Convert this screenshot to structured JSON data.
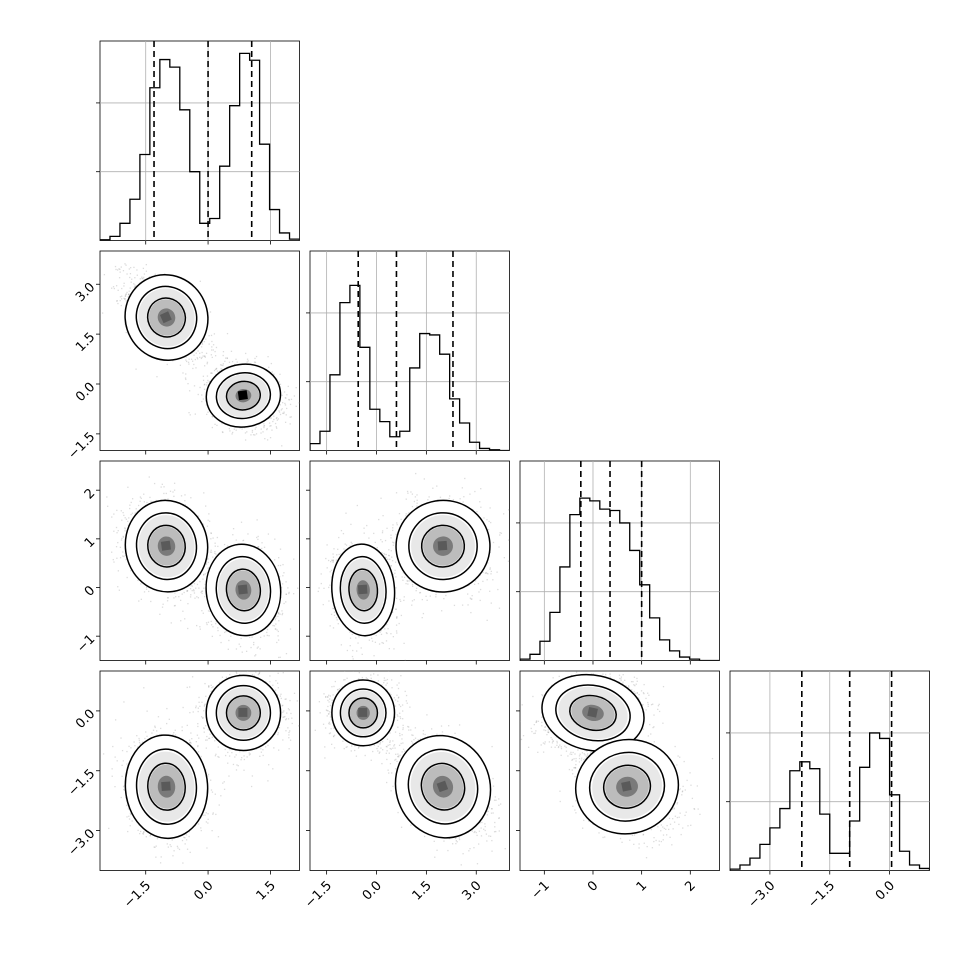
{
  "chart_data": {
    "type": "corner",
    "n_params": 4,
    "colors": {
      "line": "#000000",
      "grid": "#b0b0b0",
      "scatter": "#9a9a9a",
      "density_light": "#e6e6e6",
      "density_dark": "#000000"
    },
    "parameters": [
      {
        "id": "p0",
        "range": [
          -2.6,
          2.2
        ],
        "ticks": [
          -1.5,
          0.0,
          1.5
        ],
        "tick_labels": [
          "−1.5",
          "0.0",
          "1.5"
        ],
        "quantiles": [
          -1.3,
          0.0,
          1.05
        ]
      },
      {
        "id": "p1",
        "range": [
          -2.0,
          4.0
        ],
        "ticks": [
          -1.5,
          0.0,
          1.5,
          3.0
        ],
        "tick_labels": [
          "−1.5",
          "0.0",
          "1.5",
          "3.0"
        ],
        "quantiles": [
          -0.55,
          0.6,
          2.3
        ]
      },
      {
        "id": "p2",
        "range": [
          -1.5,
          2.6
        ],
        "ticks": [
          -1,
          0,
          1,
          2
        ],
        "tick_labels": [
          "−1",
          "0",
          "1",
          "2"
        ],
        "quantiles": [
          -0.25,
          0.35,
          1.0
        ]
      },
      {
        "id": "p3",
        "range": [
          -4.0,
          1.0
        ],
        "ticks": [
          -3.0,
          -1.5,
          0.0
        ],
        "tick_labels": [
          "−3.0",
          "−1.5",
          "0.0"
        ],
        "quantiles": [
          -2.2,
          -1.0,
          0.05
        ]
      }
    ],
    "histograms": [
      {
        "param": 0,
        "edges_start": -2.6,
        "bin_width": 0.24,
        "counts": [
          1,
          6,
          25,
          60,
          125,
          222,
          263,
          252,
          190,
          100,
          25,
          32,
          108,
          196,
          272,
          262,
          140,
          45,
          11,
          2
        ]
      },
      {
        "param": 1,
        "edges_start": -2.0,
        "bin_width": 0.3,
        "counts": [
          10,
          28,
          110,
          215,
          240,
          150,
          60,
          42,
          20,
          28,
          120,
          170,
          168,
          140,
          75,
          40,
          12,
          3,
          1,
          0
        ]
      },
      {
        "param": 2,
        "edges_start": -1.5,
        "bin_width": 0.205,
        "counts": [
          2,
          9,
          28,
          70,
          136,
          212,
          236,
          232,
          220,
          218,
          200,
          160,
          110,
          62,
          30,
          14,
          5,
          2,
          0,
          0
        ]
      },
      {
        "param": 3,
        "edges_start": -4.0,
        "bin_width": 0.25,
        "counts": [
          2,
          8,
          18,
          38,
          62,
          90,
          145,
          158,
          148,
          82,
          25,
          25,
          72,
          150,
          200,
          192,
          110,
          28,
          8,
          3
        ]
      }
    ],
    "hist_ylim": [
      0,
      290
    ],
    "hist_yticks": [
      100,
      200
    ],
    "pairs": [
      {
        "row": 1,
        "col": 0,
        "modes": [
          {
            "cx": -1.0,
            "cy": 2.0,
            "sx": 0.42,
            "sy": 0.55,
            "rho": -0.6
          },
          {
            "cx": 0.85,
            "cy": -0.35,
            "sx": 0.38,
            "sy": 0.4,
            "rho": -0.2
          }
        ]
      },
      {
        "row": 2,
        "col": 0,
        "modes": [
          {
            "cx": -1.0,
            "cy": 0.85,
            "sx": 0.42,
            "sy": 0.4,
            "rho": -0.2
          },
          {
            "cx": 0.85,
            "cy": -0.05,
            "sx": 0.38,
            "sy": 0.4,
            "rho": -0.15
          }
        ]
      },
      {
        "row": 2,
        "col": 1,
        "modes": [
          {
            "cx": -0.4,
            "cy": -0.05,
            "sx": 0.4,
            "sy": 0.4,
            "rho": -0.1
          },
          {
            "cx": 2.0,
            "cy": 0.85,
            "sx": 0.6,
            "sy": 0.4,
            "rho": -0.1
          }
        ]
      },
      {
        "row": 3,
        "col": 0,
        "modes": [
          {
            "cx": -1.0,
            "cy": -1.9,
            "sx": 0.42,
            "sy": 0.55,
            "rho": -0.1
          },
          {
            "cx": 0.85,
            "cy": -0.05,
            "sx": 0.38,
            "sy": 0.4,
            "rho": 0.0
          }
        ]
      },
      {
        "row": 3,
        "col": 1,
        "modes": [
          {
            "cx": -0.4,
            "cy": -0.05,
            "sx": 0.4,
            "sy": 0.35,
            "rho": 0.0
          },
          {
            "cx": 2.0,
            "cy": -1.9,
            "sx": 0.6,
            "sy": 0.55,
            "rho": -0.5
          }
        ]
      },
      {
        "row": 3,
        "col": 2,
        "modes": [
          {
            "cx": 0.0,
            "cy": -0.05,
            "sx": 0.45,
            "sy": 0.4,
            "rho": 0.3
          },
          {
            "cx": 0.7,
            "cy": -1.9,
            "sx": 0.45,
            "sy": 0.5,
            "rho": -0.3
          }
        ]
      }
    ],
    "contour_levels": [
      1.0,
      1.6,
      2.2
    ]
  }
}
